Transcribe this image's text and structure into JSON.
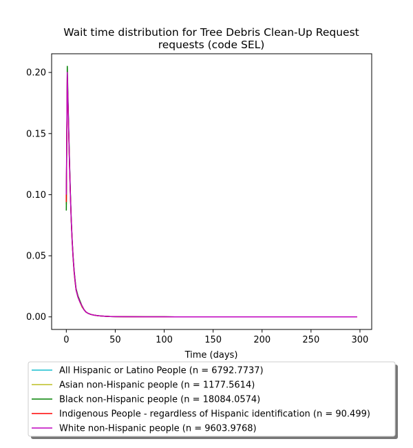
{
  "chart_data": {
    "type": "line",
    "title_line1": "Wait time distribution  for Tree Debris Clean-Up Request",
    "title_line2": "requests (code SEL)",
    "xlabel": "Time (days)",
    "ylabel": "",
    "xlim": [
      -15,
      312
    ],
    "ylim": [
      -0.0103,
      0.2153
    ],
    "xticks": [
      0,
      50,
      100,
      150,
      200,
      250,
      300
    ],
    "yticks": [
      0.0,
      0.05,
      0.1,
      0.15,
      0.2
    ],
    "ytick_labels": [
      "0.00",
      "0.05",
      "0.10",
      "0.15",
      "0.20"
    ],
    "legend_position": "below",
    "series": [
      {
        "name": "All Hispanic or Latino People (n = 6792.7737)",
        "color": "#17becf",
        "x": [
          0,
          1,
          2,
          3,
          4,
          5,
          6,
          7,
          8,
          9,
          10,
          12,
          14,
          16,
          18,
          20,
          22,
          25,
          28,
          32,
          36,
          40,
          45,
          50,
          60,
          80,
          100,
          150,
          200,
          250,
          297
        ],
        "y": [
          0.095,
          0.195,
          0.168,
          0.135,
          0.105,
          0.08,
          0.062,
          0.048,
          0.037,
          0.029,
          0.022,
          0.016,
          0.012,
          0.009,
          0.006,
          0.004,
          0.003,
          0.002,
          0.0015,
          0.001,
          0.0007,
          0.0005,
          0.0003,
          0.0002,
          0.0001,
          5e-05,
          3e-05,
          1e-05,
          0.0,
          0.0,
          0.0
        ]
      },
      {
        "name": "Asian non-Hispanic people (n = 1177.5614)",
        "color": "#bcbd22",
        "x": [
          0,
          1,
          2,
          3,
          4,
          5,
          6,
          7,
          8,
          9,
          10,
          12,
          14,
          16,
          18,
          20,
          22,
          25,
          28,
          32,
          36,
          40,
          45,
          50,
          60,
          80,
          100,
          150,
          200,
          250,
          297
        ],
        "y": [
          0.092,
          0.198,
          0.165,
          0.132,
          0.103,
          0.079,
          0.061,
          0.047,
          0.036,
          0.028,
          0.022,
          0.016,
          0.012,
          0.008,
          0.006,
          0.004,
          0.003,
          0.002,
          0.0015,
          0.001,
          0.0007,
          0.0005,
          0.0003,
          0.0002,
          0.0001,
          5e-05,
          3e-05,
          1e-05,
          0.0,
          0.0,
          0.0
        ]
      },
      {
        "name": "Black non-Hispanic people (n = 18084.0574)",
        "color": "#008000",
        "x": [
          0,
          1,
          2,
          3,
          4,
          5,
          6,
          7,
          8,
          9,
          10,
          12,
          14,
          16,
          18,
          20,
          22,
          25,
          28,
          32,
          36,
          40,
          45,
          50,
          60,
          80,
          100,
          150,
          200,
          250,
          297
        ],
        "y": [
          0.087,
          0.205,
          0.17,
          0.136,
          0.106,
          0.081,
          0.063,
          0.049,
          0.038,
          0.03,
          0.023,
          0.017,
          0.013,
          0.009,
          0.006,
          0.004,
          0.003,
          0.002,
          0.0015,
          0.001,
          0.0007,
          0.0005,
          0.0003,
          0.0002,
          0.0001,
          5e-05,
          3e-05,
          1e-05,
          0.0,
          0.0,
          0.0
        ]
      },
      {
        "name": "Indigenous People - regardless of Hispanic identification (n = 90.499)",
        "color": "#ff0000",
        "x": [
          0,
          1,
          2,
          3,
          4,
          5,
          6,
          7,
          8,
          9,
          10,
          12,
          14,
          16,
          18,
          20,
          22,
          25,
          28,
          32,
          36,
          40,
          45,
          50,
          60,
          80,
          100,
          150,
          200,
          250,
          297
        ],
        "y": [
          0.094,
          0.197,
          0.166,
          0.133,
          0.104,
          0.08,
          0.062,
          0.048,
          0.037,
          0.029,
          0.022,
          0.016,
          0.012,
          0.009,
          0.006,
          0.004,
          0.003,
          0.002,
          0.0015,
          0.001,
          0.0007,
          0.0005,
          0.0003,
          0.0002,
          0.0001,
          5e-05,
          3e-05,
          1e-05,
          0.0,
          0.0,
          0.0
        ]
      },
      {
        "name": "White non-Hispanic people (n = 9603.9768)",
        "color": "#bf00bf",
        "x": [
          0,
          1,
          2,
          3,
          4,
          5,
          6,
          7,
          8,
          9,
          10,
          12,
          14,
          16,
          18,
          20,
          22,
          25,
          28,
          32,
          36,
          40,
          45,
          50,
          60,
          80,
          100,
          150,
          200,
          250,
          297
        ],
        "y": [
          0.1,
          0.2,
          0.167,
          0.134,
          0.104,
          0.08,
          0.062,
          0.048,
          0.037,
          0.029,
          0.022,
          0.016,
          0.012,
          0.009,
          0.006,
          0.004,
          0.003,
          0.002,
          0.0015,
          0.001,
          0.0007,
          0.0005,
          0.0003,
          0.0002,
          0.0001,
          5e-05,
          3e-05,
          1e-05,
          0.0,
          0.0,
          0.0
        ]
      }
    ]
  }
}
